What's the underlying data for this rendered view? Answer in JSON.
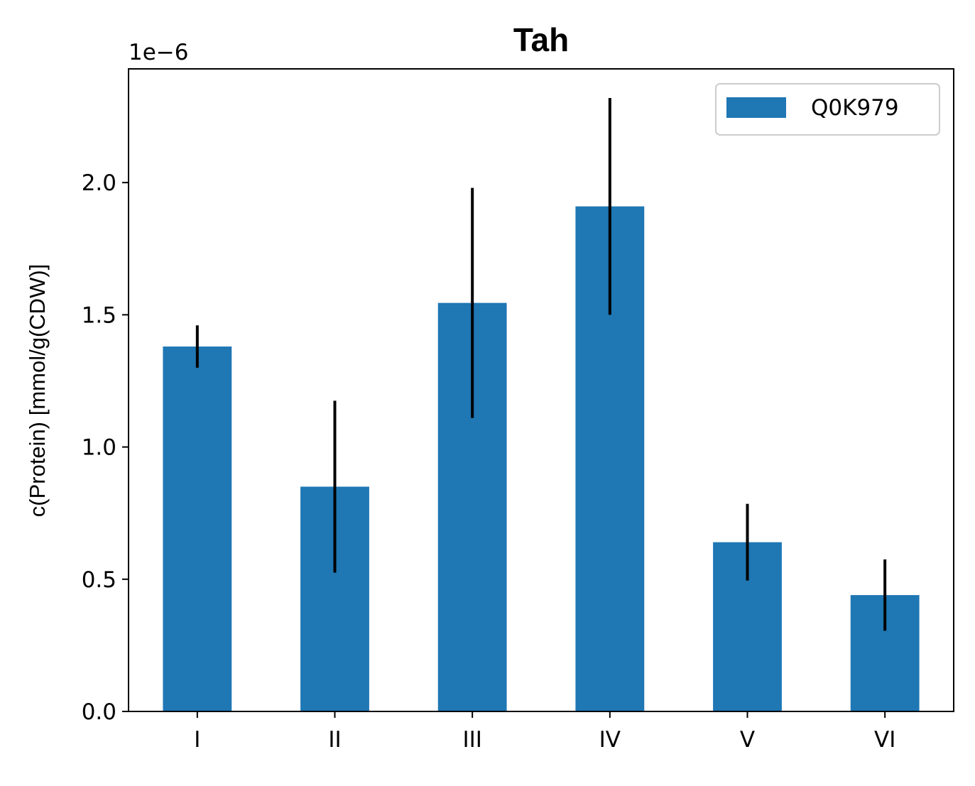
{
  "chart_data": {
    "type": "bar",
    "title": "Tah",
    "xlabel": "",
    "ylabel": "c(Protein) [mmol/g(CDW)]",
    "offset_text": "1e−6",
    "categories": [
      "I",
      "II",
      "III",
      "IV",
      "V",
      "VI"
    ],
    "series": [
      {
        "name": "Q0K979",
        "color": "#1f77b4",
        "values": [
          1.38e-06,
          8.5e-07,
          1.545e-06,
          1.91e-06,
          6.4e-07,
          4.4e-07
        ],
        "error": [
          8e-08,
          3.25e-07,
          4.35e-07,
          4.1e-07,
          1.45e-07,
          1.35e-07
        ]
      }
    ],
    "ylim": [
      0,
      2.43e-06
    ],
    "yticks": [
      0.0,
      0.5,
      1.0,
      1.5,
      2.0
    ],
    "ytick_labels": [
      "0.0",
      "0.5",
      "1.0",
      "1.5",
      "2.0"
    ],
    "ytick_scale": 1e-06,
    "legend_position": "top-right",
    "grid": false
  }
}
